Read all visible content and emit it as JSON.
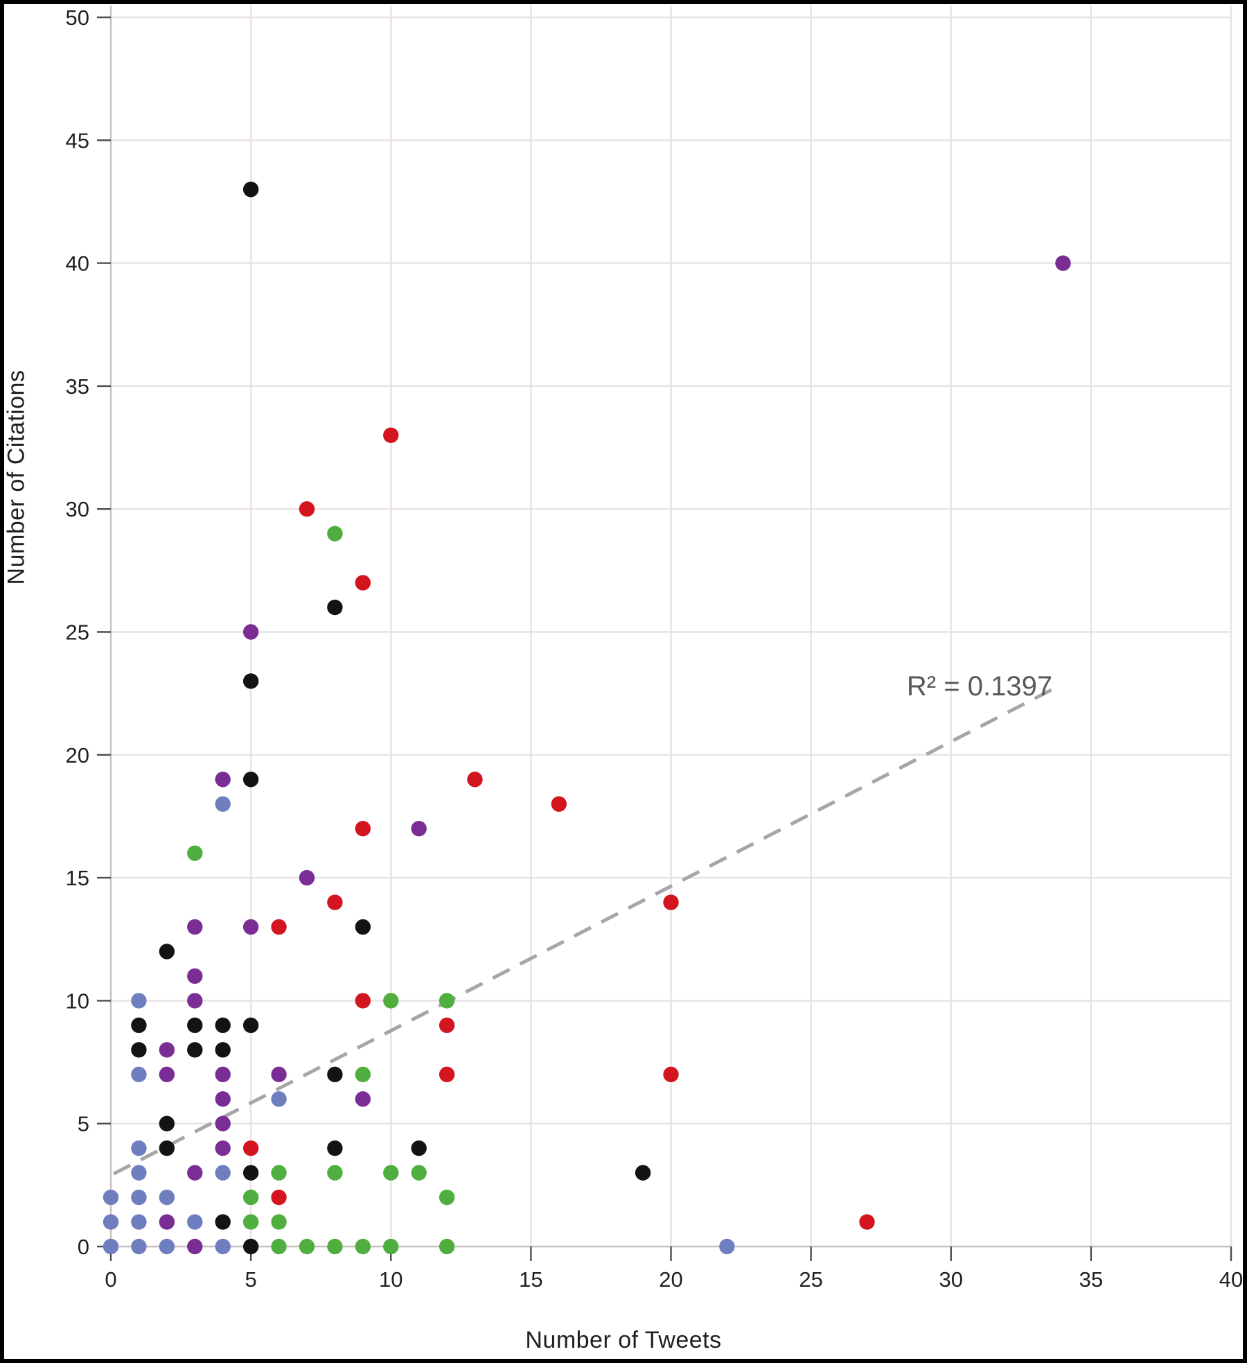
{
  "figure": {
    "background": "#ffffff",
    "border_color": "#000000"
  },
  "chart_data": {
    "type": "scatter",
    "title": "",
    "xlabel": "Number of Tweets",
    "ylabel": "Number of Citations",
    "xlim": [
      0,
      40
    ],
    "ylim": [
      0,
      50
    ],
    "x_ticks": [
      0,
      5,
      10,
      15,
      20,
      25,
      30,
      35,
      40
    ],
    "y_ticks": [
      0,
      5,
      10,
      15,
      20,
      25,
      30,
      35,
      40,
      45,
      50
    ],
    "grid": true,
    "grid_color": "#eae2e2",
    "axis_line_color": "#c9c0c0",
    "tick_color": "#4d4d4d",
    "annotation": {
      "text": "R² = 0.1397",
      "x": 30.9,
      "y": 22.8,
      "color": "#595959"
    },
    "trendline": {
      "style": "dashed",
      "color": "#a6a6a6",
      "x1": 0.1,
      "y1": 2.96,
      "x2": 33.85,
      "y2": 22.8
    },
    "legend": "none",
    "series": [
      {
        "name": "blue",
        "color": "#6e7ebf",
        "points": [
          [
            0,
            0
          ],
          [
            0,
            1
          ],
          [
            0,
            2
          ],
          [
            1,
            0
          ],
          [
            1,
            1
          ],
          [
            1,
            2
          ],
          [
            1,
            3
          ],
          [
            1,
            4
          ],
          [
            1,
            7
          ],
          [
            1,
            10
          ],
          [
            2,
            0
          ],
          [
            2,
            2
          ],
          [
            3,
            1
          ],
          [
            4,
            0
          ],
          [
            4,
            3
          ],
          [
            4,
            18
          ],
          [
            6,
            6
          ],
          [
            22,
            0
          ]
        ]
      },
      {
        "name": "purple",
        "color": "#7b2d96",
        "points": [
          [
            2,
            1
          ],
          [
            2,
            7
          ],
          [
            2,
            8
          ],
          [
            3,
            0
          ],
          [
            3,
            3
          ],
          [
            3,
            10
          ],
          [
            3,
            11
          ],
          [
            3,
            13
          ],
          [
            4,
            4
          ],
          [
            4,
            5
          ],
          [
            4,
            6
          ],
          [
            4,
            7
          ],
          [
            4,
            19
          ],
          [
            5,
            13
          ],
          [
            5,
            25
          ],
          [
            6,
            7
          ],
          [
            7,
            15
          ],
          [
            9,
            6
          ],
          [
            11,
            17
          ],
          [
            34,
            40
          ]
        ]
      },
      {
        "name": "green",
        "color": "#4fae3e",
        "points": [
          [
            3,
            16
          ],
          [
            5,
            1
          ],
          [
            5,
            2
          ],
          [
            6,
            0
          ],
          [
            6,
            1
          ],
          [
            6,
            3
          ],
          [
            7,
            0
          ],
          [
            8,
            0
          ],
          [
            8,
            3
          ],
          [
            8,
            29
          ],
          [
            9,
            0
          ],
          [
            9,
            7
          ],
          [
            10,
            0
          ],
          [
            10,
            3
          ],
          [
            10,
            10
          ],
          [
            11,
            3
          ],
          [
            12,
            0
          ],
          [
            12,
            2
          ],
          [
            12,
            10
          ]
        ]
      },
      {
        "name": "red",
        "color": "#d2151f",
        "points": [
          [
            5,
            4
          ],
          [
            6,
            2
          ],
          [
            6,
            13
          ],
          [
            7,
            30
          ],
          [
            8,
            14
          ],
          [
            9,
            10
          ],
          [
            9,
            17
          ],
          [
            9,
            27
          ],
          [
            10,
            33
          ],
          [
            12,
            7
          ],
          [
            12,
            9
          ],
          [
            13,
            19
          ],
          [
            16,
            18
          ],
          [
            20,
            7
          ],
          [
            20,
            14
          ],
          [
            27,
            1
          ]
        ]
      },
      {
        "name": "black",
        "color": "#131313",
        "points": [
          [
            1,
            8
          ],
          [
            1,
            9
          ],
          [
            2,
            4
          ],
          [
            2,
            5
          ],
          [
            2,
            12
          ],
          [
            3,
            8
          ],
          [
            3,
            9
          ],
          [
            4,
            1
          ],
          [
            4,
            8
          ],
          [
            4,
            9
          ],
          [
            5,
            0
          ],
          [
            5,
            3
          ],
          [
            5,
            9
          ],
          [
            5,
            19
          ],
          [
            5,
            23
          ],
          [
            5,
            43
          ],
          [
            8,
            4
          ],
          [
            8,
            7
          ],
          [
            8,
            26
          ],
          [
            9,
            13
          ],
          [
            11,
            4
          ],
          [
            19,
            3
          ]
        ]
      }
    ]
  }
}
